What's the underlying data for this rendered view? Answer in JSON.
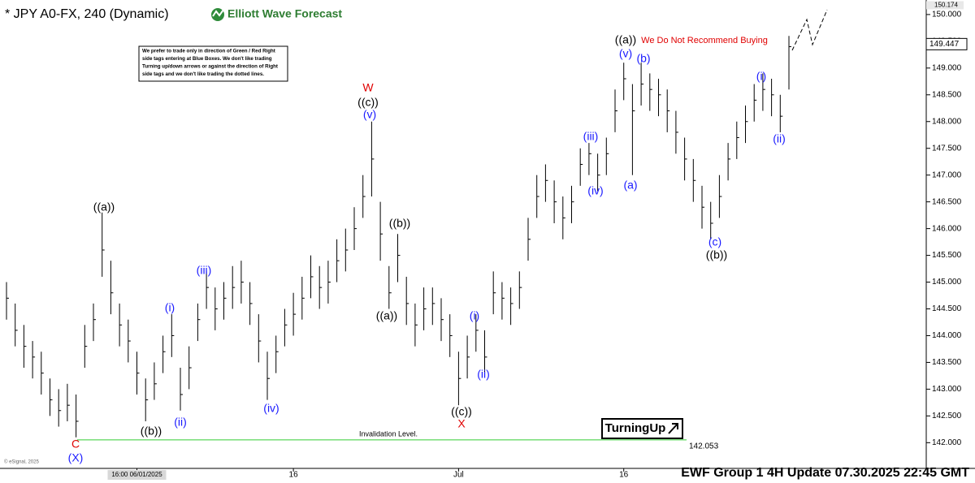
{
  "chart_data": {
    "type": "ohlc",
    "title": "* JPY A0-FX, 240 (Dynamic)",
    "brand": "Elliott Wave Forecast",
    "note_lines": [
      "We prefer to trade only in direction of Green / Red Right",
      "side tags entering at Blue Boxes. We don't like trading",
      "Turning up/down arrows or against the direction of Right",
      "side tags and we don't like trading the dotted lines."
    ],
    "warning": "We Do Not Recommend Buying",
    "invalidation_label": "Invalidation Level.",
    "invalidation_value": 142.053,
    "last_price": 149.447,
    "top_price": 150.174,
    "badge": "TurningUp",
    "footer": "EWF Group 1 4H  Update 07.30.2025 22:45 GMT",
    "copyright": "© eSignal, 2025",
    "bar_color": "#000000",
    "invalidation_color": "#33cc33",
    "ylim": [
      141.55,
      150.15
    ],
    "yticks": [
      {
        "value": 142,
        "label": "142.000"
      },
      {
        "value": 142.5,
        "label": "142.500"
      },
      {
        "value": 143,
        "label": "143.000"
      },
      {
        "value": 143.5,
        "label": "143.500"
      },
      {
        "value": 144,
        "label": "144.000"
      },
      {
        "value": 144.5,
        "label": "144.500"
      },
      {
        "value": 145,
        "label": "145.000"
      },
      {
        "value": 145.5,
        "label": "145.500"
      },
      {
        "value": 146,
        "label": "146.000"
      },
      {
        "value": 146.5,
        "label": "146.500"
      },
      {
        "value": 147,
        "label": "147.000"
      },
      {
        "value": 147.5,
        "label": "147.500"
      },
      {
        "value": 148,
        "label": "148.000"
      },
      {
        "value": 148.5,
        "label": "148.500"
      },
      {
        "value": 149,
        "label": "149.000"
      },
      {
        "value": 149.5,
        "label": "149.500"
      },
      {
        "value": 150,
        "label": "150.000"
      }
    ],
    "categories": [
      null,
      null,
      null,
      null,
      null,
      null,
      null,
      null,
      null,
      null,
      null,
      null,
      null,
      null,
      null,
      "16:00 06/01/2025",
      null,
      null,
      null,
      null,
      null,
      null,
      null,
      null,
      null,
      null,
      null,
      null,
      null,
      null,
      null,
      null,
      null,
      "16",
      null,
      null,
      null,
      null,
      null,
      null,
      null,
      null,
      null,
      null,
      null,
      null,
      null,
      null,
      null,
      null,
      null,
      null,
      "Jul",
      null,
      null,
      null,
      null,
      null,
      null,
      null,
      null,
      null,
      null,
      null,
      null,
      null,
      null,
      null,
      null,
      null,
      null,
      "16",
      null,
      null,
      null,
      null,
      null,
      null,
      null,
      null,
      null,
      null,
      null,
      null,
      null,
      null,
      null,
      null,
      null,
      null,
      null
    ],
    "close": [
      144.7,
      144.1,
      143.8,
      143.6,
      143.3,
      142.8,
      142.6,
      142.7,
      142.4,
      143.8,
      144.3,
      145.6,
      144.8,
      144.2,
      143.9,
      143.3,
      142.8,
      143.1,
      143.7,
      144.0,
      142.9,
      143.4,
      144.3,
      144.9,
      144.5,
      144.7,
      144.9,
      145.0,
      144.6,
      143.9,
      143.2,
      143.7,
      144.2,
      144.4,
      144.7,
      145.1,
      144.9,
      145.0,
      145.4,
      145.6,
      146.0,
      146.6,
      147.3,
      145.9,
      144.8,
      145.5,
      144.6,
      144.2,
      144.5,
      144.6,
      144.3,
      144.0,
      143.2,
      143.6,
      144.1,
      143.6,
      144.8,
      144.7,
      144.6,
      144.9,
      145.8,
      146.6,
      146.9,
      146.5,
      146.2,
      146.5,
      147.2,
      147.4,
      147.0,
      147.4,
      148.2,
      148.8,
      148.2,
      148.7,
      148.6,
      148.5,
      148.2,
      147.8,
      147.3,
      146.9,
      146.4,
      146.1,
      146.6,
      147.3,
      147.7,
      148.0,
      148.4,
      148.6,
      148.5,
      148.1,
      149.4
    ],
    "high": [
      145.0,
      144.6,
      144.2,
      143.9,
      143.7,
      143.2,
      143.0,
      143.1,
      142.9,
      144.2,
      144.6,
      146.3,
      145.4,
      144.6,
      144.3,
      143.7,
      143.2,
      143.5,
      144.0,
      144.4,
      143.4,
      143.8,
      144.6,
      145.2,
      144.9,
      145.0,
      145.3,
      145.4,
      145.0,
      144.4,
      143.7,
      144.0,
      144.5,
      144.8,
      145.1,
      145.5,
      145.3,
      145.4,
      145.8,
      146.0,
      146.4,
      147.0,
      148.0,
      146.5,
      145.3,
      145.9,
      145.1,
      144.6,
      144.9,
      144.9,
      144.7,
      144.4,
      143.7,
      144.0,
      144.4,
      144.1,
      145.2,
      145.0,
      144.9,
      145.2,
      146.2,
      147.0,
      147.2,
      146.9,
      146.6,
      146.8,
      147.5,
      147.6,
      147.4,
      147.7,
      148.6,
      149.1,
      148.7,
      149.1,
      148.9,
      148.8,
      148.6,
      148.2,
      147.7,
      147.3,
      146.8,
      146.5,
      147.0,
      147.6,
      148.0,
      148.3,
      148.7,
      148.9,
      148.8,
      148.5,
      149.6
    ],
    "low": [
      144.3,
      143.8,
      143.4,
      143.2,
      142.9,
      142.5,
      142.3,
      142.4,
      142.1,
      143.4,
      143.9,
      145.1,
      144.4,
      143.8,
      143.5,
      142.9,
      142.4,
      142.8,
      143.3,
      143.6,
      142.6,
      143.0,
      143.9,
      144.5,
      144.1,
      144.3,
      144.5,
      144.6,
      144.2,
      143.5,
      142.8,
      143.3,
      143.8,
      144.0,
      144.3,
      144.7,
      144.5,
      144.6,
      145.0,
      145.2,
      145.6,
      146.2,
      146.6,
      145.4,
      144.5,
      145.0,
      144.2,
      143.8,
      144.1,
      144.2,
      143.9,
      143.6,
      142.7,
      143.2,
      143.7,
      143.3,
      144.4,
      144.3,
      144.2,
      144.5,
      145.4,
      146.2,
      146.5,
      146.1,
      145.8,
      146.1,
      146.8,
      147.0,
      146.7,
      147.0,
      147.8,
      148.4,
      147.0,
      148.3,
      148.2,
      148.1,
      147.8,
      147.4,
      146.9,
      146.5,
      146.0,
      145.8,
      146.2,
      146.9,
      147.3,
      147.6,
      148.0,
      148.2,
      148.1,
      147.8,
      148.6
    ],
    "wave_labels": [
      {
        "text": "((a))",
        "color": "#000000"
      },
      {
        "text": "C",
        "color": "#e00000"
      },
      {
        "text": "(X)",
        "color": "#1a1aff"
      },
      {
        "text": "((b))",
        "color": "#000000"
      },
      {
        "text": "(i)",
        "color": "#1a1aff"
      },
      {
        "text": "(ii)",
        "color": "#1a1aff"
      },
      {
        "text": "(iii)",
        "color": "#1a1aff"
      },
      {
        "text": "(iv)",
        "color": "#1a1aff"
      },
      {
        "text": "W",
        "color": "#e00000"
      },
      {
        "text": "((c))",
        "color": "#000000"
      },
      {
        "text": "(v)",
        "color": "#1a1aff"
      },
      {
        "text": "((b))",
        "color": "#000000"
      },
      {
        "text": "((a))",
        "color": "#000000"
      },
      {
        "text": "((c))",
        "color": "#000000"
      },
      {
        "text": "X",
        "color": "#e00000"
      },
      {
        "text": "(i)",
        "color": "#1a1aff"
      },
      {
        "text": "(ii)",
        "color": "#1a1aff"
      },
      {
        "text": "(iii)",
        "color": "#1a1aff"
      },
      {
        "text": "(iv)",
        "color": "#1a1aff"
      },
      {
        "text": "((a))",
        "color": "#000000"
      },
      {
        "text": "(v)",
        "color": "#1a1aff"
      },
      {
        "text": "(b)",
        "color": "#1a1aff"
      },
      {
        "text": "(a)",
        "color": "#1a1aff"
      },
      {
        "text": "(c)",
        "color": "#1a1aff"
      },
      {
        "text": "((b))",
        "color": "#000000"
      },
      {
        "text": "(i)",
        "color": "#1a1aff"
      },
      {
        "text": "(ii)",
        "color": "#1a1aff"
      }
    ]
  }
}
